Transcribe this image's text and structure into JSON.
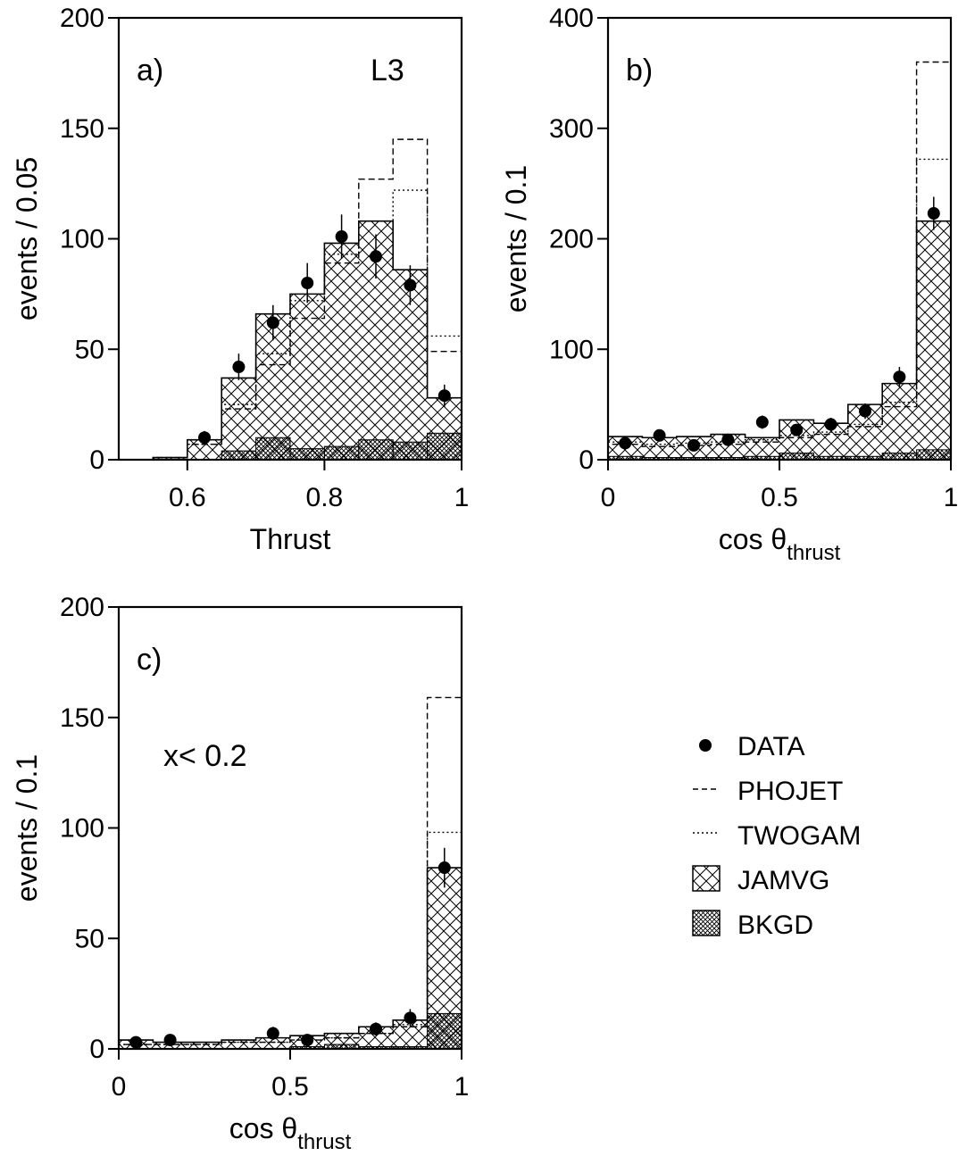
{
  "experiment_label": "L3",
  "legend": {
    "data": "DATA",
    "phojet": "PHOJET",
    "twogam": "TWOGAM",
    "jamvg": "JAMVG",
    "bkgd": "BKGD"
  },
  "chart_data": [
    {
      "id": "a",
      "type": "histogram",
      "panel_label": "a)",
      "xlabel": "Thrust",
      "ylabel": "events / 0.05",
      "xlim": [
        0.5,
        1.0
      ],
      "ylim": [
        0,
        200
      ],
      "xticks": [
        0.6,
        0.8,
        1.0
      ],
      "xtick_labels": [
        "0.6",
        "0.8",
        "1"
      ],
      "yticks": [
        0,
        50,
        100,
        150,
        200
      ],
      "ytick_labels": [
        "0",
        "50",
        "100",
        "150",
        "200"
      ],
      "bin_edges": [
        0.5,
        0.55,
        0.6,
        0.65,
        0.7,
        0.75,
        0.8,
        0.85,
        0.9,
        0.95,
        1.0
      ],
      "series": {
        "jamvg": [
          0,
          1,
          9,
          37,
          66,
          75,
          98,
          108,
          86,
          28
        ],
        "bkgd": [
          0,
          0,
          0,
          4,
          10,
          5,
          6,
          9,
          8,
          12
        ],
        "phojet": [
          0,
          1,
          7,
          23,
          43,
          64,
          89,
          127,
          145,
          49
        ],
        "twogam": [
          0,
          1,
          7,
          25,
          48,
          72,
          93,
          108,
          122,
          56
        ],
        "data": {
          "x": [
            0.625,
            0.675,
            0.725,
            0.775,
            0.825,
            0.875,
            0.925,
            0.975
          ],
          "y": [
            10,
            42,
            62,
            80,
            101,
            92,
            79,
            29
          ],
          "err": [
            3,
            6,
            8,
            9,
            10,
            10,
            9,
            5
          ]
        }
      }
    },
    {
      "id": "b",
      "type": "histogram",
      "panel_label": "b)",
      "xlabel": "cos θ",
      "xlabel_sub": "thrust",
      "ylabel": "events / 0.1",
      "xlim": [
        0,
        1
      ],
      "ylim": [
        0,
        400
      ],
      "xticks": [
        0,
        0.5,
        1
      ],
      "xtick_labels": [
        "0",
        "0.5",
        "1"
      ],
      "yticks": [
        0,
        100,
        200,
        300,
        400
      ],
      "ytick_labels": [
        "0",
        "100",
        "200",
        "300",
        "400"
      ],
      "bin_edges": [
        0,
        0.1,
        0.2,
        0.3,
        0.4,
        0.5,
        0.6,
        0.7,
        0.8,
        0.9,
        1.0
      ],
      "series": {
        "jamvg": [
          21,
          20,
          21,
          23,
          20,
          36,
          33,
          50,
          69,
          216
        ],
        "bkgd": [
          3,
          2,
          2,
          2,
          3,
          6,
          3,
          3,
          6,
          9
        ],
        "phojet": [
          14,
          12,
          13,
          14,
          16,
          20,
          23,
          30,
          48,
          360
        ],
        "twogam": [
          16,
          14,
          15,
          16,
          18,
          22,
          25,
          32,
          52,
          272
        ],
        "data": {
          "x": [
            0.05,
            0.15,
            0.25,
            0.35,
            0.45,
            0.55,
            0.65,
            0.75,
            0.85,
            0.95
          ],
          "y": [
            15,
            22,
            13,
            18,
            34,
            27,
            32,
            44,
            75,
            223
          ],
          "err": [
            4,
            5,
            4,
            4,
            6,
            5,
            6,
            7,
            9,
            15
          ]
        }
      }
    },
    {
      "id": "c",
      "type": "histogram",
      "panel_label": "c)",
      "annotation": "x< 0.2",
      "xlabel": "cos θ",
      "xlabel_sub": "thrust",
      "ylabel": "events / 0.1",
      "xlim": [
        0,
        1
      ],
      "ylim": [
        0,
        200
      ],
      "xticks": [
        0,
        0.5,
        1
      ],
      "xtick_labels": [
        "0",
        "0.5",
        "1"
      ],
      "yticks": [
        0,
        50,
        100,
        150,
        200
      ],
      "ytick_labels": [
        "0",
        "50",
        "100",
        "150",
        "200"
      ],
      "bin_edges": [
        0,
        0.1,
        0.2,
        0.3,
        0.4,
        0.5,
        0.6,
        0.7,
        0.8,
        0.9,
        1.0
      ],
      "series": {
        "jamvg": [
          4,
          3,
          3,
          4,
          5,
          6,
          7,
          10,
          13,
          82
        ],
        "bkgd": [
          0,
          0,
          0,
          0,
          0,
          1,
          2,
          1,
          1,
          16
        ],
        "phojet": [
          2,
          2,
          2,
          3,
          3,
          4,
          5,
          7,
          10,
          159
        ],
        "twogam": [
          2,
          2,
          2,
          3,
          3,
          4,
          5,
          7,
          11,
          98
        ],
        "data": {
          "x": [
            0.05,
            0.15,
            0.45,
            0.55,
            0.75,
            0.85,
            0.95
          ],
          "y": [
            3,
            4,
            7,
            4,
            9,
            14,
            82
          ],
          "err": [
            2,
            2,
            3,
            2,
            3,
            4,
            9
          ]
        }
      }
    }
  ]
}
